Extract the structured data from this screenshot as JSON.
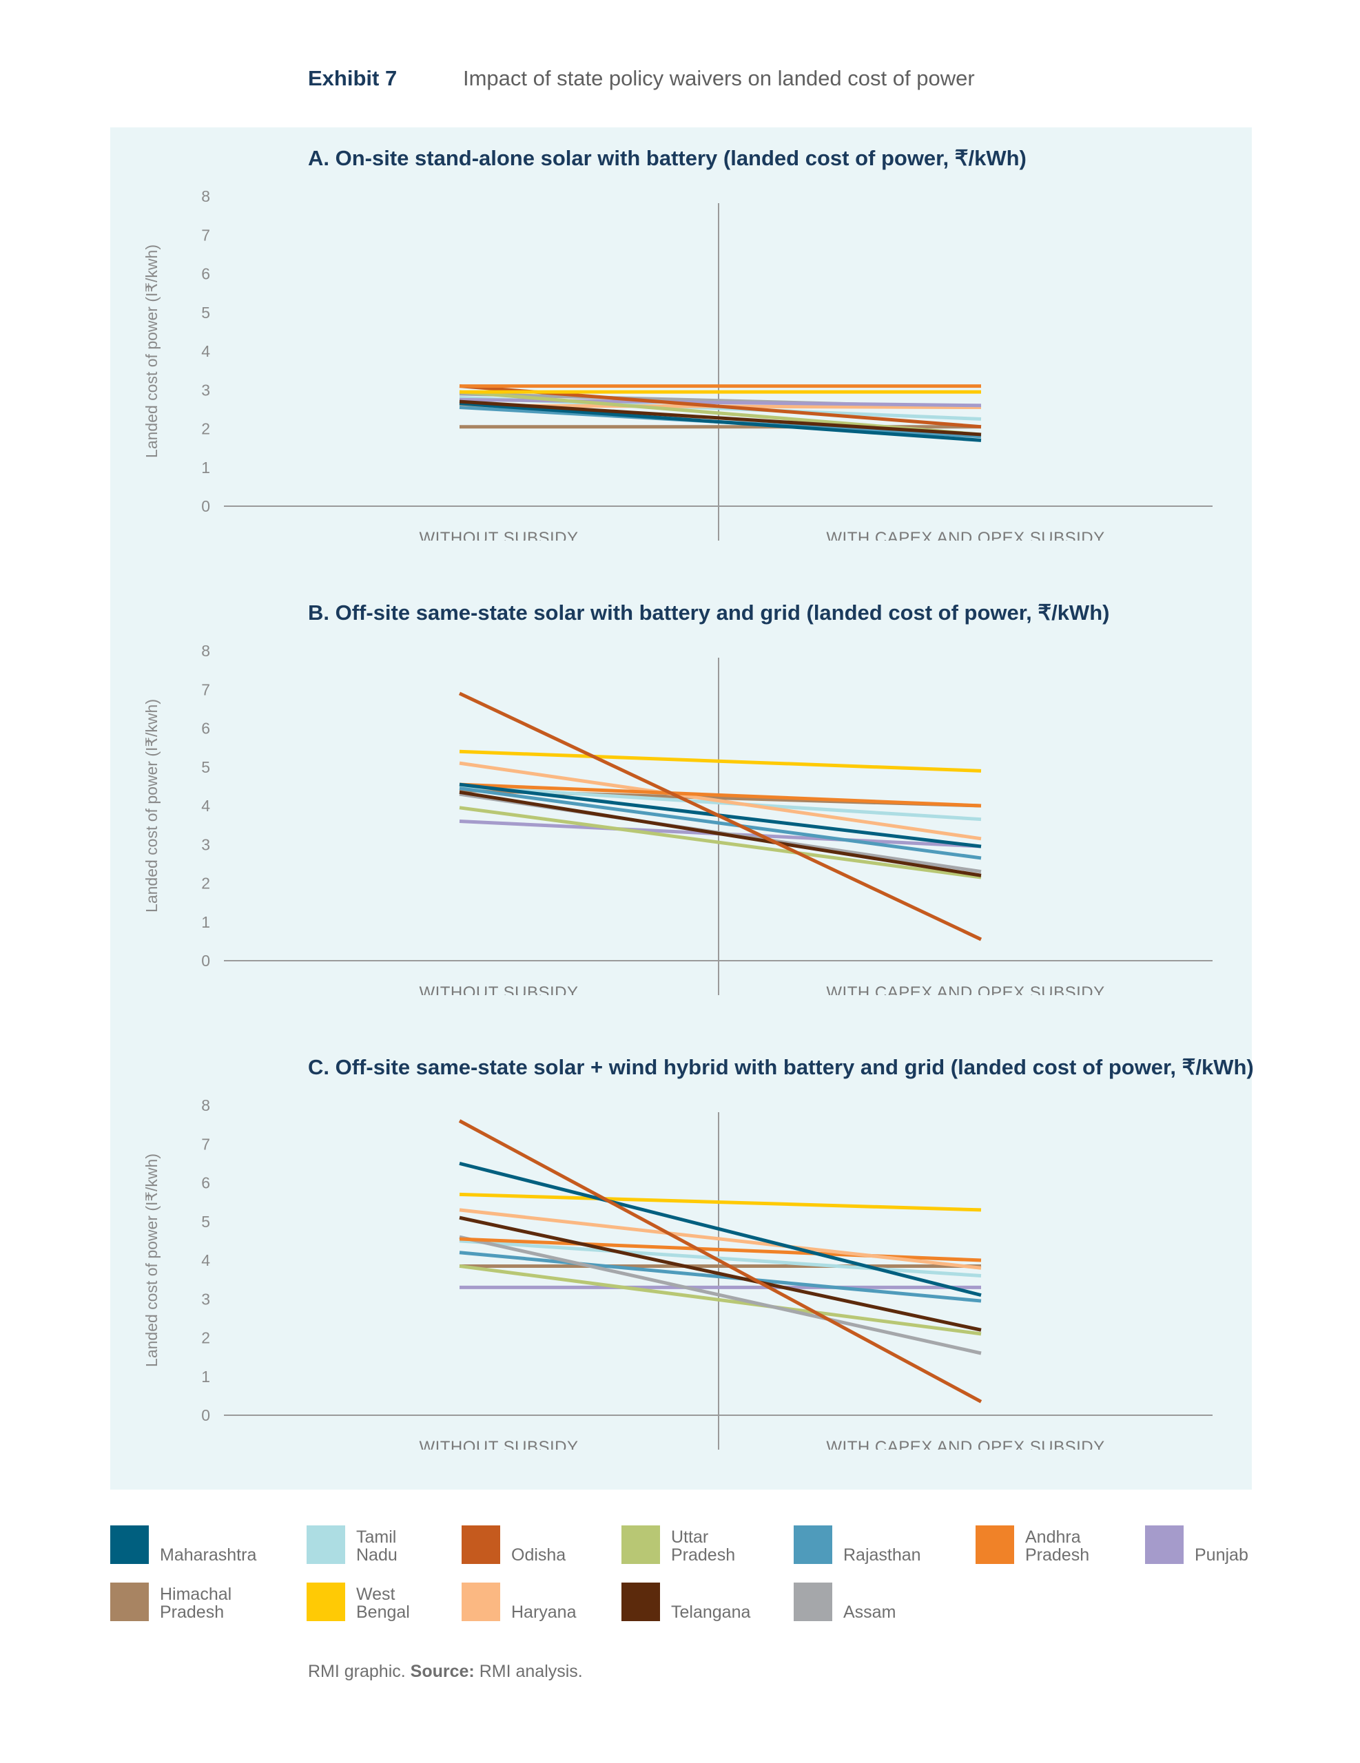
{
  "header": {
    "exhibit_label": "Exhibit 7",
    "exhibit_title": "Impact of state policy waivers on landed cost of power"
  },
  "legend": [
    {
      "name": "Maharashtra",
      "color": "#005f7f"
    },
    {
      "name": "Tamil Nadu",
      "color": "#addde3"
    },
    {
      "name": "Odisha",
      "color": "#c55a1e"
    },
    {
      "name": "Uttar Pradesh",
      "color": "#b8c774"
    },
    {
      "name": "Rajasthan",
      "color": "#4f9bbb"
    },
    {
      "name": "Andhra Pradesh",
      "color": "#f08228"
    },
    {
      "name": "Punjab",
      "color": "#a59bcb"
    },
    {
      "name": "Himachal Pradesh",
      "color": "#a88462"
    },
    {
      "name": "West Bengal",
      "color": "#ffca05"
    },
    {
      "name": "Haryana",
      "color": "#fbb882"
    },
    {
      "name": "Telangana",
      "color": "#5c2a0c"
    },
    {
      "name": "Assam",
      "color": "#a5a7aa"
    }
  ],
  "chart_data": [
    {
      "type": "line",
      "title": "A. On-site stand-alone solar with battery (landed cost of power, ₹/kWh)",
      "ylabel": "Landed cost of power (I₹/kwh)",
      "ylim": [
        0,
        8
      ],
      "yticks": [
        "0",
        "1",
        "2",
        "3",
        "4",
        "5",
        "6",
        "7",
        "8"
      ],
      "categories": [
        "WITHOUT SUBSIDY",
        "WITH CAPEX AND OPEX SUBSIDY"
      ],
      "series": [
        {
          "name": "Himachal Pradesh",
          "values": [
            2.05,
            2.05
          ]
        },
        {
          "name": "Tamil Nadu",
          "values": [
            2.8,
            2.25
          ]
        },
        {
          "name": "Assam",
          "values": [
            2.9,
            2.55
          ]
        },
        {
          "name": "Haryana",
          "values": [
            2.6,
            2.55
          ]
        },
        {
          "name": "Punjab",
          "values": [
            2.75,
            2.6
          ]
        },
        {
          "name": "Uttar Pradesh",
          "values": [
            2.95,
            1.85
          ]
        },
        {
          "name": "Rajasthan",
          "values": [
            2.55,
            1.8
          ]
        },
        {
          "name": "Maharashtra",
          "values": [
            2.65,
            1.7
          ]
        },
        {
          "name": "Telangana",
          "values": [
            2.7,
            1.85
          ]
        },
        {
          "name": "Odisha",
          "values": [
            3.1,
            2.05
          ]
        },
        {
          "name": "West Bengal",
          "values": [
            2.95,
            2.95
          ]
        },
        {
          "name": "Andhra Pradesh",
          "values": [
            3.1,
            3.1
          ]
        }
      ]
    },
    {
      "type": "line",
      "title": "B. Off-site same-state solar with battery and grid (landed cost of power, ₹/kWh)",
      "ylabel": "Landed cost of power (I₹/kwh)",
      "ylim": [
        0,
        8
      ],
      "yticks": [
        "0",
        "1",
        "2",
        "3",
        "4",
        "5",
        "6",
        "7",
        "8"
      ],
      "categories": [
        "WITHOUT SUBSIDY",
        "WITH CAPEX AND OPEX SUBSIDY"
      ],
      "series": [
        {
          "name": "Punjab",
          "values": [
            3.6,
            2.95
          ]
        },
        {
          "name": "Uttar Pradesh",
          "values": [
            3.95,
            2.15
          ]
        },
        {
          "name": "Assam",
          "values": [
            4.3,
            2.3
          ]
        },
        {
          "name": "Himachal Pradesh",
          "values": [
            4.4,
            4.0
          ]
        },
        {
          "name": "Tamil Nadu",
          "values": [
            4.5,
            3.65
          ]
        },
        {
          "name": "Rajasthan",
          "values": [
            4.45,
            2.65
          ]
        },
        {
          "name": "Haryana",
          "values": [
            5.1,
            3.15
          ]
        },
        {
          "name": "Andhra Pradesh",
          "values": [
            4.55,
            4.0
          ]
        },
        {
          "name": "Maharashtra",
          "values": [
            4.55,
            2.95
          ]
        },
        {
          "name": "Telangana",
          "values": [
            4.35,
            2.2
          ]
        },
        {
          "name": "West Bengal",
          "values": [
            5.4,
            4.9
          ]
        },
        {
          "name": "Odisha",
          "values": [
            6.9,
            0.55
          ]
        }
      ]
    },
    {
      "type": "line",
      "title": "C. Off-site same-state solar + wind hybrid with battery and grid (landed cost of power, ₹/kWh)",
      "ylabel": "Landed cost of power (I₹/kwh)",
      "ylim": [
        0,
        8
      ],
      "yticks": [
        "0",
        "1",
        "2",
        "3",
        "4",
        "5",
        "6",
        "7",
        "8"
      ],
      "categories": [
        "WITHOUT SUBSIDY",
        "WITH CAPEX AND OPEX SUBSIDY"
      ],
      "series": [
        {
          "name": "Punjab",
          "values": [
            3.3,
            3.3
          ]
        },
        {
          "name": "Himachal Pradesh",
          "values": [
            3.85,
            3.85
          ]
        },
        {
          "name": "Uttar Pradesh",
          "values": [
            3.85,
            2.1
          ]
        },
        {
          "name": "Rajasthan",
          "values": [
            4.2,
            2.95
          ]
        },
        {
          "name": "Tamil Nadu",
          "values": [
            4.5,
            3.6
          ]
        },
        {
          "name": "Assam",
          "values": [
            4.6,
            1.6
          ]
        },
        {
          "name": "Andhra Pradesh",
          "values": [
            4.55,
            4.0
          ]
        },
        {
          "name": "Haryana",
          "values": [
            5.3,
            3.8
          ]
        },
        {
          "name": "Telangana",
          "values": [
            5.1,
            2.2
          ]
        },
        {
          "name": "West Bengal",
          "values": [
            5.7,
            5.3
          ]
        },
        {
          "name": "Maharashtra",
          "values": [
            6.5,
            3.1
          ]
        },
        {
          "name": "Odisha",
          "values": [
            7.6,
            0.35
          ]
        }
      ]
    }
  ],
  "footer": {
    "prefix": "RMI graphic. ",
    "source_label": "Source:",
    "source_text": " RMI analysis."
  }
}
